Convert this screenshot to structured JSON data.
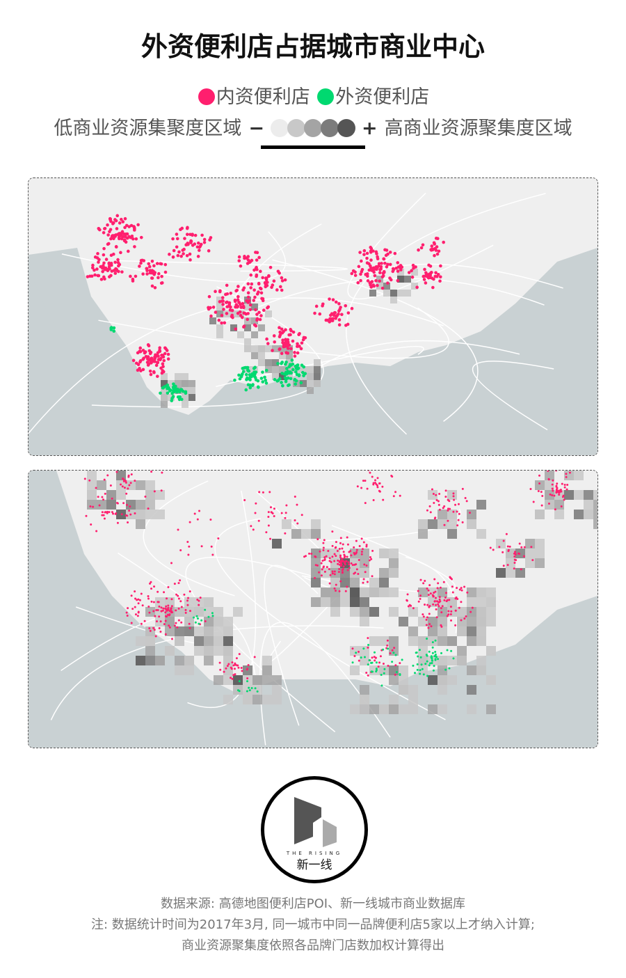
{
  "title": "外资便利店占据城市商业中心",
  "legend": {
    "domestic": {
      "label": "内资便利店",
      "color": "#ff1f6e"
    },
    "foreign": {
      "label": "外资便利店",
      "color": "#00d970"
    },
    "low_label": "低商业资源集聚度区域",
    "minus": "−",
    "plus": "+",
    "high_label": "高商业资源聚集度区域",
    "scale_colors": [
      "#ececec",
      "#c8c8c8",
      "#a4a4a4",
      "#7c7c7c",
      "#555555"
    ]
  },
  "colors": {
    "land": "#efefef",
    "water": "#c9d1d3",
    "road": "#ffffff"
  },
  "logo": {
    "en": "THE RISING",
    "cn": "新一线"
  },
  "footer": {
    "line1": "数据来源: 高德地图便利店POI、新一线城市商业数据库",
    "line2": "注: 数据统计时间为2017年3月, 同一城市中同一品牌便利店5家以上才纳入计算;",
    "line3": "商业资源聚集度依照各品牌门店数加权计算得出"
  }
}
